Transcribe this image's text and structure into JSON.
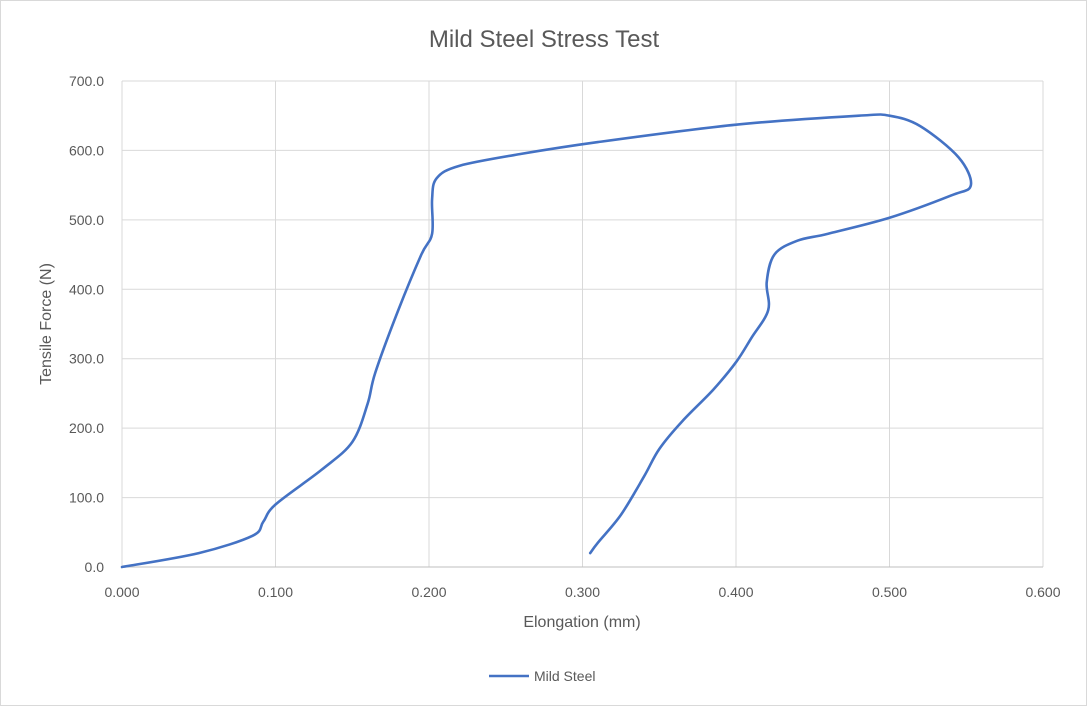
{
  "chart_data": {
    "type": "line",
    "title": "Mild Steel Stress Test",
    "xlabel": "Elongation (mm)",
    "ylabel": "Tensile Force (N)",
    "xlim": [
      0,
      0.6
    ],
    "ylim": [
      0,
      700
    ],
    "x_ticks": [
      "0.000",
      "0.100",
      "0.200",
      "0.300",
      "0.400",
      "0.500",
      "0.600"
    ],
    "y_ticks": [
      "0.0",
      "100.0",
      "200.0",
      "300.0",
      "400.0",
      "500.0",
      "600.0",
      "700.0"
    ],
    "grid": true,
    "legend_position": "bottom",
    "series": [
      {
        "name": "Mild Steel",
        "color": "#4472c4",
        "points": [
          [
            0.0,
            0
          ],
          [
            0.05,
            20
          ],
          [
            0.085,
            45
          ],
          [
            0.092,
            65
          ],
          [
            0.1,
            90
          ],
          [
            0.13,
            140
          ],
          [
            0.15,
            180
          ],
          [
            0.16,
            235
          ],
          [
            0.165,
            280
          ],
          [
            0.18,
            370
          ],
          [
            0.195,
            450
          ],
          [
            0.202,
            480
          ],
          [
            0.202,
            530
          ],
          [
            0.205,
            560
          ],
          [
            0.22,
            578
          ],
          [
            0.26,
            595
          ],
          [
            0.31,
            612
          ],
          [
            0.4,
            637
          ],
          [
            0.48,
            650
          ],
          [
            0.5,
            650
          ],
          [
            0.52,
            635
          ],
          [
            0.545,
            590
          ],
          [
            0.553,
            550
          ],
          [
            0.54,
            535
          ],
          [
            0.5,
            503
          ],
          [
            0.46,
            480
          ],
          [
            0.44,
            470
          ],
          [
            0.425,
            450
          ],
          [
            0.42,
            410
          ],
          [
            0.421,
            370
          ],
          [
            0.41,
            330
          ],
          [
            0.4,
            295
          ],
          [
            0.385,
            255
          ],
          [
            0.365,
            210
          ],
          [
            0.35,
            170
          ],
          [
            0.34,
            130
          ],
          [
            0.325,
            75
          ],
          [
            0.31,
            35
          ],
          [
            0.305,
            20
          ]
        ]
      }
    ]
  }
}
